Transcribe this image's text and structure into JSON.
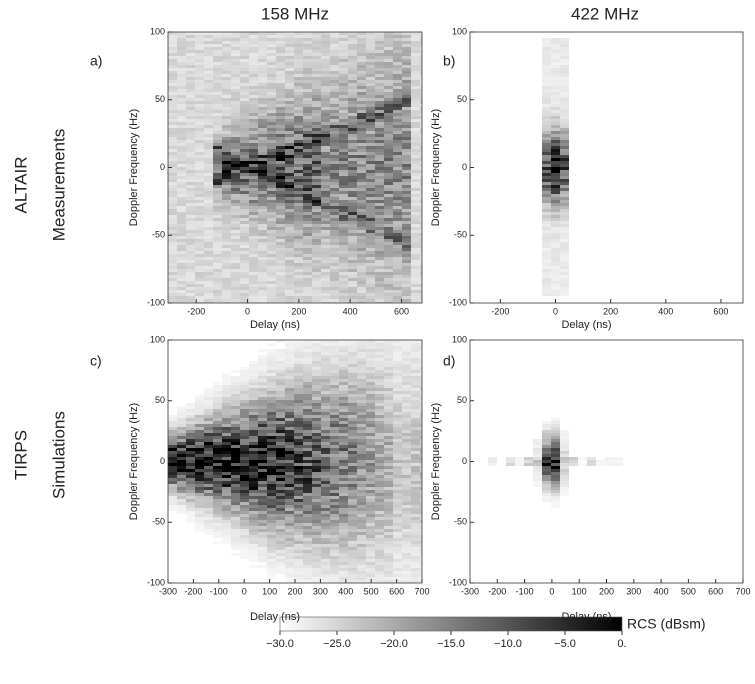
{
  "column_titles": [
    "158 MHz",
    "422 MHz"
  ],
  "row_titles": [
    [
      "ALTAIR",
      "Measurements"
    ],
    [
      "TIRPS",
      "Simulations"
    ]
  ],
  "chart_data": [
    {
      "type": "heatmap",
      "panel_label": "a)",
      "xlabel": "Delay (ns)",
      "ylabel": "Doppler Frequency (Hz)",
      "xlim": [
        -310,
        680
      ],
      "xticks": [
        -200,
        0,
        200,
        400,
        600
      ],
      "ylim": [
        -100,
        100
      ],
      "yticks": [
        -100,
        -50,
        0,
        50,
        100
      ]
    },
    {
      "type": "heatmap",
      "panel_label": "b)",
      "xlabel": "Delay (ns)",
      "ylabel": "Doppler Frequency (Hz)",
      "xlim": [
        -310,
        680
      ],
      "xticks": [
        -200,
        0,
        200,
        400,
        600
      ],
      "ylim": [
        -100,
        100
      ],
      "yticks": [
        -100,
        -50,
        0,
        50,
        100
      ]
    },
    {
      "type": "heatmap",
      "panel_label": "c)",
      "xlabel": "Delay (ns)",
      "ylabel": "Doppler Frequency (Hz)",
      "xlim": [
        -300,
        700
      ],
      "xticks": [
        -300,
        -200,
        -100,
        0,
        100,
        200,
        300,
        400,
        500,
        600,
        700
      ],
      "ylim": [
        -100,
        100
      ],
      "yticks": [
        -100,
        -50,
        0,
        50,
        100
      ]
    },
    {
      "type": "heatmap",
      "panel_label": "d)",
      "xlabel": "Delay (ns)",
      "ylabel": "Doppler Frequency (Hz)",
      "xlim": [
        -300,
        700
      ],
      "xticks": [
        -300,
        -200,
        -100,
        0,
        100,
        200,
        300,
        400,
        500,
        600,
        700
      ],
      "ylim": [
        -100,
        100
      ],
      "yticks": [
        -100,
        -50,
        0,
        50,
        100
      ]
    }
  ],
  "colorbar": {
    "label": "RCS (dBsm)",
    "lim": [
      -30,
      0
    ],
    "ticks": [
      {
        "value": -30,
        "label": "−30.0"
      },
      {
        "value": -25,
        "label": "−25.0"
      },
      {
        "value": -20,
        "label": "−20.0"
      },
      {
        "value": -15,
        "label": "−15.0"
      },
      {
        "value": -10,
        "label": "−10.0"
      },
      {
        "value": -5,
        "label": "−5.0"
      },
      {
        "value": 0,
        "label": "0."
      }
    ]
  }
}
